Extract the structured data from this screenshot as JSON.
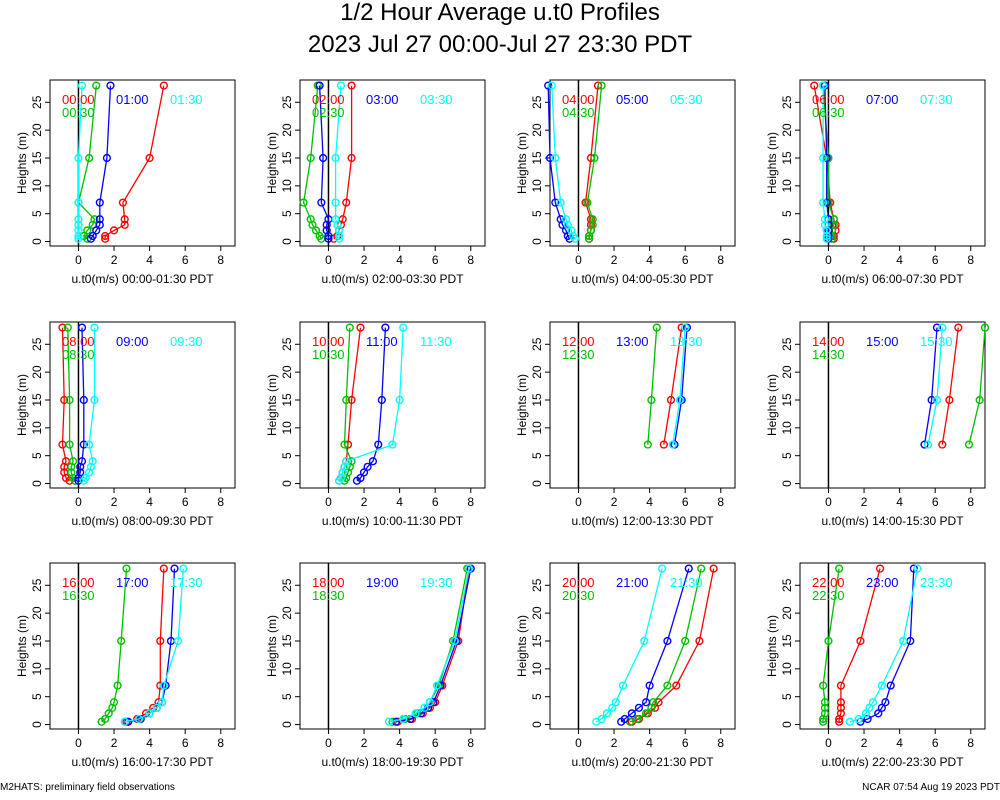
{
  "title": "1/2 Hour Average u.t0 Profiles",
  "subtitle": "2023 Jul 27 00:00-Jul 27 23:30 PDT",
  "footer_left": "M2HATS: preliminary field observations",
  "footer_right": "NCAR 07:54 Aug 19 2023 PDT",
  "colors": {
    "first": "#ff0000",
    "second": "#00c000",
    "third": "#0000ff",
    "fourth": "#00ffff"
  },
  "chart_data": [
    {
      "type": "line",
      "xlabel": "u.t0(m/s) 00:00-01:30 PDT",
      "ylabel": "Heights (m)",
      "xlim": [
        -1.6,
        8.8
      ],
      "ylim": [
        -0.8,
        29
      ],
      "x_ticks": [
        0,
        2,
        4,
        6,
        8
      ],
      "y_ticks": [
        0,
        5,
        10,
        15,
        20,
        25
      ],
      "heights": [
        0.5,
        1,
        2,
        3,
        4,
        7,
        15,
        28
      ],
      "series": [
        {
          "name": "00:00",
          "color": "#ff0000",
          "values": [
            1.5,
            1.5,
            2.0,
            2.6,
            2.6,
            2.5,
            4.0,
            4.8
          ]
        },
        {
          "name": "00:30",
          "color": "#00c000",
          "values": [
            0.5,
            0.3,
            0.5,
            0.8,
            0.9,
            0.0,
            0.6,
            1.0
          ]
        },
        {
          "name": "01:00",
          "color": "#0000ff",
          "values": [
            0.7,
            0.8,
            1.0,
            1.2,
            1.2,
            1.2,
            1.6,
            1.8
          ]
        },
        {
          "name": "01:30",
          "color": "#00ffff",
          "values": [
            0.0,
            0.0,
            0.0,
            0.0,
            0.0,
            0.0,
            0.0,
            0.2
          ]
        }
      ]
    },
    {
      "type": "line",
      "xlabel": "u.t0(m/s) 02:00-03:30 PDT",
      "ylabel": "Heights (m)",
      "xlim": [
        -1.6,
        8.8
      ],
      "ylim": [
        -0.8,
        29
      ],
      "x_ticks": [
        0,
        2,
        4,
        6,
        8
      ],
      "y_ticks": [
        0,
        5,
        10,
        15,
        20,
        25
      ],
      "heights": [
        0.5,
        1,
        2,
        3,
        4,
        7,
        15,
        28
      ],
      "series": [
        {
          "name": "02:00",
          "color": "#ff0000",
          "values": [
            0.3,
            0.5,
            0.6,
            0.7,
            0.8,
            1.0,
            1.3,
            1.3
          ]
        },
        {
          "name": "02:30",
          "color": "#00c000",
          "values": [
            -0.4,
            -0.5,
            -0.7,
            -0.9,
            -1.0,
            -1.4,
            -1.0,
            -0.6
          ]
        },
        {
          "name": "03:00",
          "color": "#0000ff",
          "values": [
            0.0,
            0.0,
            -0.1,
            -0.1,
            0.0,
            -0.4,
            -0.3,
            -0.5
          ]
        },
        {
          "name": "03:30",
          "color": "#00ffff",
          "values": [
            0.6,
            0.6,
            0.6,
            0.5,
            0.4,
            0.4,
            0.4,
            0.7
          ]
        }
      ]
    },
    {
      "type": "line",
      "xlabel": "u.t0(m/s) 04:00-05:30 PDT",
      "ylabel": "Heights (m)",
      "xlim": [
        -1.6,
        8.8
      ],
      "ylim": [
        -0.8,
        29
      ],
      "x_ticks": [
        0,
        2,
        4,
        6,
        8
      ],
      "y_ticks": [
        0,
        5,
        10,
        15,
        20,
        25
      ],
      "heights": [
        0.5,
        1,
        2,
        3,
        4,
        7,
        15,
        28
      ],
      "series": [
        {
          "name": "04:00",
          "color": "#ff0000",
          "values": [
            0.6,
            0.6,
            0.7,
            0.7,
            0.7,
            0.4,
            0.7,
            1.1
          ]
        },
        {
          "name": "04:30",
          "color": "#00c000",
          "values": [
            0.6,
            0.6,
            0.7,
            0.8,
            0.8,
            0.5,
            0.9,
            1.3
          ]
        },
        {
          "name": "05:00",
          "color": "#0000ff",
          "values": [
            -0.5,
            -0.6,
            -0.7,
            -0.9,
            -1.0,
            -1.3,
            -1.6,
            -1.7
          ]
        },
        {
          "name": "05:30",
          "color": "#00ffff",
          "values": [
            -0.2,
            -0.3,
            -0.4,
            -0.6,
            -0.7,
            -1.0,
            -1.3,
            -1.5
          ]
        }
      ]
    },
    {
      "type": "line",
      "xlabel": "u.t0(m/s) 06:00-07:30 PDT",
      "ylabel": "Heights (m)",
      "xlim": [
        -1.6,
        8.8
      ],
      "ylim": [
        -0.8,
        29
      ],
      "x_ticks": [
        0,
        2,
        4,
        6,
        8
      ],
      "y_ticks": [
        0,
        5,
        10,
        15,
        20,
        25
      ],
      "heights": [
        0.5,
        1,
        2,
        3,
        4,
        7,
        15,
        28
      ],
      "series": [
        {
          "name": "06:00",
          "color": "#ff0000",
          "values": [
            0.3,
            0.3,
            0.4,
            0.4,
            0.3,
            0.1,
            -0.1,
            -0.8
          ]
        },
        {
          "name": "06:30",
          "color": "#00c000",
          "values": [
            0.2,
            0.2,
            0.2,
            0.3,
            0.3,
            0.0,
            0.0,
            -0.3
          ]
        },
        {
          "name": "07:00",
          "color": "#0000ff",
          "values": [
            0.0,
            0.0,
            0.0,
            0.0,
            0.0,
            -0.1,
            -0.1,
            -0.2
          ]
        },
        {
          "name": "07:30",
          "color": "#00ffff",
          "values": [
            -0.1,
            -0.1,
            -0.1,
            -0.2,
            -0.2,
            -0.3,
            -0.3,
            -0.3
          ]
        }
      ]
    },
    {
      "type": "line",
      "xlabel": "u.t0(m/s) 08:00-09:30 PDT",
      "ylabel": "Heights (m)",
      "xlim": [
        -1.6,
        8.8
      ],
      "ylim": [
        -0.8,
        29
      ],
      "x_ticks": [
        0,
        2,
        4,
        6,
        8
      ],
      "y_ticks": [
        0,
        5,
        10,
        15,
        20,
        25
      ],
      "heights": [
        0.5,
        1,
        2,
        3,
        4,
        7,
        15,
        28
      ],
      "series": [
        {
          "name": "08:00",
          "color": "#ff0000",
          "values": [
            -0.5,
            -0.7,
            -0.8,
            -0.8,
            -0.7,
            -0.9,
            -0.8,
            -0.9
          ]
        },
        {
          "name": "08:30",
          "color": "#00c000",
          "values": [
            -0.2,
            -0.3,
            -0.4,
            -0.4,
            -0.3,
            -0.5,
            -0.5,
            -0.6
          ]
        },
        {
          "name": "09:00",
          "color": "#0000ff",
          "values": [
            0.0,
            0.0,
            0.1,
            0.1,
            0.2,
            0.3,
            0.3,
            0.2
          ]
        },
        {
          "name": "09:30",
          "color": "#00ffff",
          "values": [
            0.3,
            0.4,
            0.6,
            0.7,
            0.8,
            0.6,
            0.9,
            0.9
          ]
        }
      ]
    },
    {
      "type": "line",
      "xlabel": "u.t0(m/s) 10:00-11:30 PDT",
      "ylabel": "Heights (m)",
      "xlim": [
        -1.6,
        8.8
      ],
      "ylim": [
        -0.8,
        29
      ],
      "x_ticks": [
        0,
        2,
        4,
        6,
        8
      ],
      "y_ticks": [
        0,
        5,
        10,
        15,
        20,
        25
      ],
      "heights": [
        0.5,
        1,
        2,
        3,
        4,
        7,
        15,
        28
      ],
      "series": [
        {
          "name": "10:00",
          "color": "#ff0000",
          "values": [
            0.6,
            0.7,
            0.8,
            0.9,
            1.0,
            1.1,
            1.3,
            1.8
          ]
        },
        {
          "name": "10:30",
          "color": "#00c000",
          "values": [
            0.9,
            1.0,
            1.1,
            1.2,
            1.3,
            0.9,
            1.0,
            1.2
          ]
        },
        {
          "name": "11:00",
          "color": "#0000ff",
          "values": [
            1.6,
            1.8,
            2.0,
            2.2,
            2.5,
            2.8,
            3.0,
            3.2
          ]
        },
        {
          "name": "11:30",
          "color": "#00ffff",
          "values": [
            0.6,
            0.7,
            0.8,
            0.9,
            1.0,
            3.6,
            4.0,
            4.2
          ]
        }
      ]
    },
    {
      "type": "line",
      "xlabel": "u.t0(m/s) 12:00-13:30 PDT",
      "ylabel": "Heights (m)",
      "xlim": [
        -1.6,
        8.8
      ],
      "ylim": [
        -0.8,
        29
      ],
      "x_ticks": [
        0,
        2,
        4,
        6,
        8
      ],
      "y_ticks": [
        0,
        5,
        10,
        15,
        20,
        25
      ],
      "heights": [
        7,
        15,
        28
      ],
      "series": [
        {
          "name": "12:00",
          "color": "#ff0000",
          "values": [
            4.8,
            5.2,
            5.8
          ]
        },
        {
          "name": "12:30",
          "color": "#00c000",
          "values": [
            3.9,
            4.1,
            4.4
          ]
        },
        {
          "name": "13:00",
          "color": "#0000ff",
          "values": [
            5.4,
            5.8,
            6.1
          ]
        },
        {
          "name": "13:30",
          "color": "#00ffff",
          "values": [
            5.3,
            5.7,
            6.0
          ]
        }
      ]
    },
    {
      "type": "line",
      "xlabel": "u.t0(m/s) 14:00-15:30 PDT",
      "ylabel": "Heights (m)",
      "xlim": [
        -1.6,
        8.8
      ],
      "ylim": [
        -0.8,
        29
      ],
      "x_ticks": [
        0,
        2,
        4,
        6,
        8
      ],
      "y_ticks": [
        0,
        5,
        10,
        15,
        20,
        25
      ],
      "heights": [
        7,
        15,
        28
      ],
      "series": [
        {
          "name": "14:00",
          "color": "#ff0000",
          "values": [
            6.4,
            6.8,
            7.3
          ]
        },
        {
          "name": "14:30",
          "color": "#00c000",
          "values": [
            7.9,
            8.5,
            8.8
          ]
        },
        {
          "name": "15:00",
          "color": "#0000ff",
          "values": [
            5.4,
            5.8,
            6.1
          ]
        },
        {
          "name": "15:30",
          "color": "#00ffff",
          "values": [
            5.6,
            6.1,
            6.4
          ]
        }
      ]
    },
    {
      "type": "line",
      "xlabel": "u.t0(m/s) 16:00-17:30 PDT",
      "ylabel": "Heights (m)",
      "xlim": [
        -1.6,
        8.8
      ],
      "ylim": [
        -0.8,
        29
      ],
      "x_ticks": [
        0,
        2,
        4,
        6,
        8
      ],
      "y_ticks": [
        0,
        5,
        10,
        15,
        20,
        25
      ],
      "heights": [
        0.5,
        1,
        2,
        3,
        4,
        7,
        15,
        28
      ],
      "series": [
        {
          "name": "16:00",
          "color": "#ff0000",
          "values": [
            2.7,
            3.3,
            3.8,
            4.2,
            4.5,
            4.6,
            4.6,
            4.8
          ]
        },
        {
          "name": "16:30",
          "color": "#00c000",
          "values": [
            1.3,
            1.5,
            1.7,
            1.9,
            2.0,
            2.2,
            2.4,
            2.7
          ]
        },
        {
          "name": "17:00",
          "color": "#0000ff",
          "values": [
            2.8,
            3.5,
            4.0,
            4.4,
            4.7,
            4.9,
            5.2,
            5.4
          ]
        },
        {
          "name": "17:30",
          "color": "#00ffff",
          "values": [
            2.6,
            3.4,
            4.0,
            4.4,
            4.7,
            4.8,
            5.6,
            5.9
          ]
        }
      ]
    },
    {
      "type": "line",
      "xlabel": "u.t0(m/s) 18:00-19:30 PDT",
      "ylabel": "Heights (m)",
      "xlim": [
        -1.6,
        8.8
      ],
      "ylim": [
        -0.8,
        29
      ],
      "x_ticks": [
        0,
        2,
        4,
        6,
        8
      ],
      "y_ticks": [
        0,
        5,
        10,
        15,
        20,
        25
      ],
      "heights": [
        0.5,
        1,
        2,
        3,
        4,
        7,
        15,
        28
      ],
      "series": [
        {
          "name": "18:00",
          "color": "#ff0000",
          "values": [
            3.9,
            4.7,
            5.3,
            5.7,
            6.0,
            6.4,
            7.3,
            7.9
          ]
        },
        {
          "name": "18:30",
          "color": "#00c000",
          "values": [
            3.6,
            4.3,
            5.0,
            5.4,
            5.7,
            6.2,
            7.0,
            7.8
          ]
        },
        {
          "name": "19:00",
          "color": "#0000ff",
          "values": [
            3.8,
            4.6,
            5.2,
            5.6,
            5.9,
            6.3,
            7.2,
            8.0
          ]
        },
        {
          "name": "19:30",
          "color": "#00ffff",
          "values": [
            3.4,
            4.2,
            4.9,
            5.4,
            5.7,
            6.1,
            7.1,
            7.9
          ]
        }
      ]
    },
    {
      "type": "line",
      "xlabel": "u.t0(m/s) 20:00-21:30 PDT",
      "ylabel": "Heights (m)",
      "xlim": [
        -1.6,
        8.8
      ],
      "ylim": [
        -0.8,
        29
      ],
      "x_ticks": [
        0,
        2,
        4,
        6,
        8
      ],
      "y_ticks": [
        0,
        5,
        10,
        15,
        20,
        25
      ],
      "heights": [
        0.5,
        1,
        2,
        3,
        4,
        7,
        15,
        28
      ],
      "series": [
        {
          "name": "20:00",
          "color": "#ff0000",
          "values": [
            3.0,
            3.4,
            3.9,
            4.3,
            4.5,
            5.5,
            6.8,
            7.6
          ]
        },
        {
          "name": "20:30",
          "color": "#00c000",
          "values": [
            2.9,
            3.3,
            3.8,
            4.1,
            4.2,
            5.0,
            6.0,
            6.9
          ]
        },
        {
          "name": "21:00",
          "color": "#0000ff",
          "values": [
            2.4,
            2.6,
            3.0,
            3.4,
            3.8,
            4.0,
            5.0,
            6.2
          ]
        },
        {
          "name": "21:30",
          "color": "#00ffff",
          "values": [
            1.0,
            1.3,
            1.6,
            1.9,
            2.1,
            2.5,
            3.7,
            4.7
          ]
        }
      ]
    },
    {
      "type": "line",
      "xlabel": "u.t0(m/s) 22:00-23:30 PDT",
      "ylabel": "Heights (m)",
      "xlim": [
        -1.6,
        8.8
      ],
      "ylim": [
        -0.8,
        29
      ],
      "x_ticks": [
        0,
        2,
        4,
        6,
        8
      ],
      "y_ticks": [
        0,
        5,
        10,
        15,
        20,
        25
      ],
      "heights": [
        0.5,
        1,
        2,
        3,
        4,
        7,
        15,
        28
      ],
      "series": [
        {
          "name": "22:00",
          "color": "#ff0000",
          "values": [
            0.6,
            0.6,
            0.7,
            0.7,
            0.7,
            0.7,
            1.8,
            2.9
          ]
        },
        {
          "name": "22:30",
          "color": "#00c000",
          "values": [
            -0.3,
            -0.3,
            -0.2,
            -0.2,
            -0.2,
            -0.3,
            0.0,
            0.6
          ]
        },
        {
          "name": "23:00",
          "color": "#0000ff",
          "values": [
            1.8,
            2.2,
            2.8,
            3.0,
            3.2,
            3.5,
            4.6,
            4.8
          ]
        },
        {
          "name": "23:30",
          "color": "#00ffff",
          "values": [
            1.2,
            1.7,
            2.1,
            2.3,
            2.5,
            3.0,
            4.2,
            5.0
          ]
        }
      ]
    }
  ]
}
